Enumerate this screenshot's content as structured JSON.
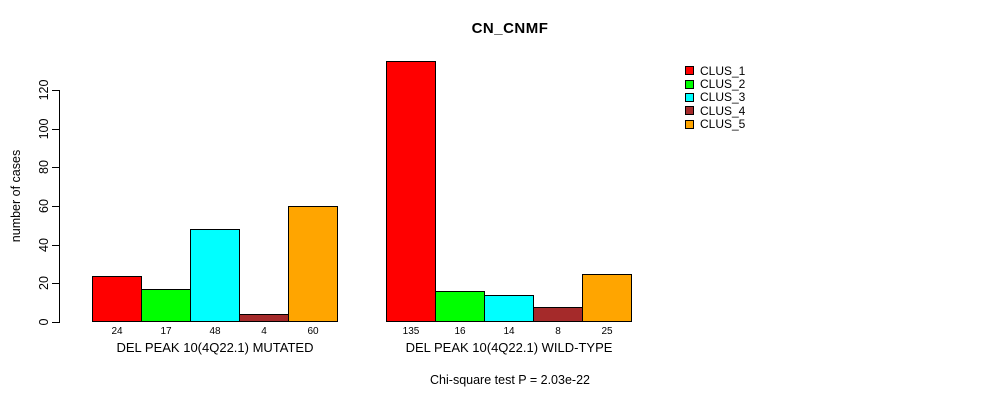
{
  "chart_data": {
    "type": "bar",
    "title": "CN_CNMF",
    "ylabel": "number of cases",
    "xlabel": "",
    "yticks": [
      0,
      20,
      40,
      60,
      80,
      100,
      120
    ],
    "ylim": [
      0,
      135
    ],
    "grid": false,
    "legend_position": "top-right",
    "bar_border_color": "#000000",
    "categories": [
      "DEL PEAK 10(4Q22.1) MUTATED",
      "DEL PEAK 10(4Q22.1) WILD-TYPE"
    ],
    "series": [
      {
        "name": "CLUS_1",
        "color": "#FF0000",
        "values": [
          24,
          135
        ]
      },
      {
        "name": "CLUS_2",
        "color": "#00FF00",
        "values": [
          17,
          16
        ]
      },
      {
        "name": "CLUS_3",
        "color": "#00FFFF",
        "values": [
          48,
          14
        ]
      },
      {
        "name": "CLUS_4",
        "color": "#A52A2A",
        "values": [
          4,
          8
        ]
      },
      {
        "name": "CLUS_5",
        "color": "#FFA500",
        "values": [
          60,
          25
        ]
      }
    ],
    "bar_value_labels": [
      [
        24,
        17,
        48,
        4,
        60
      ],
      [
        135,
        16,
        14,
        8,
        25
      ]
    ],
    "annotation": "Chi-square test P = 2.03e-22"
  }
}
